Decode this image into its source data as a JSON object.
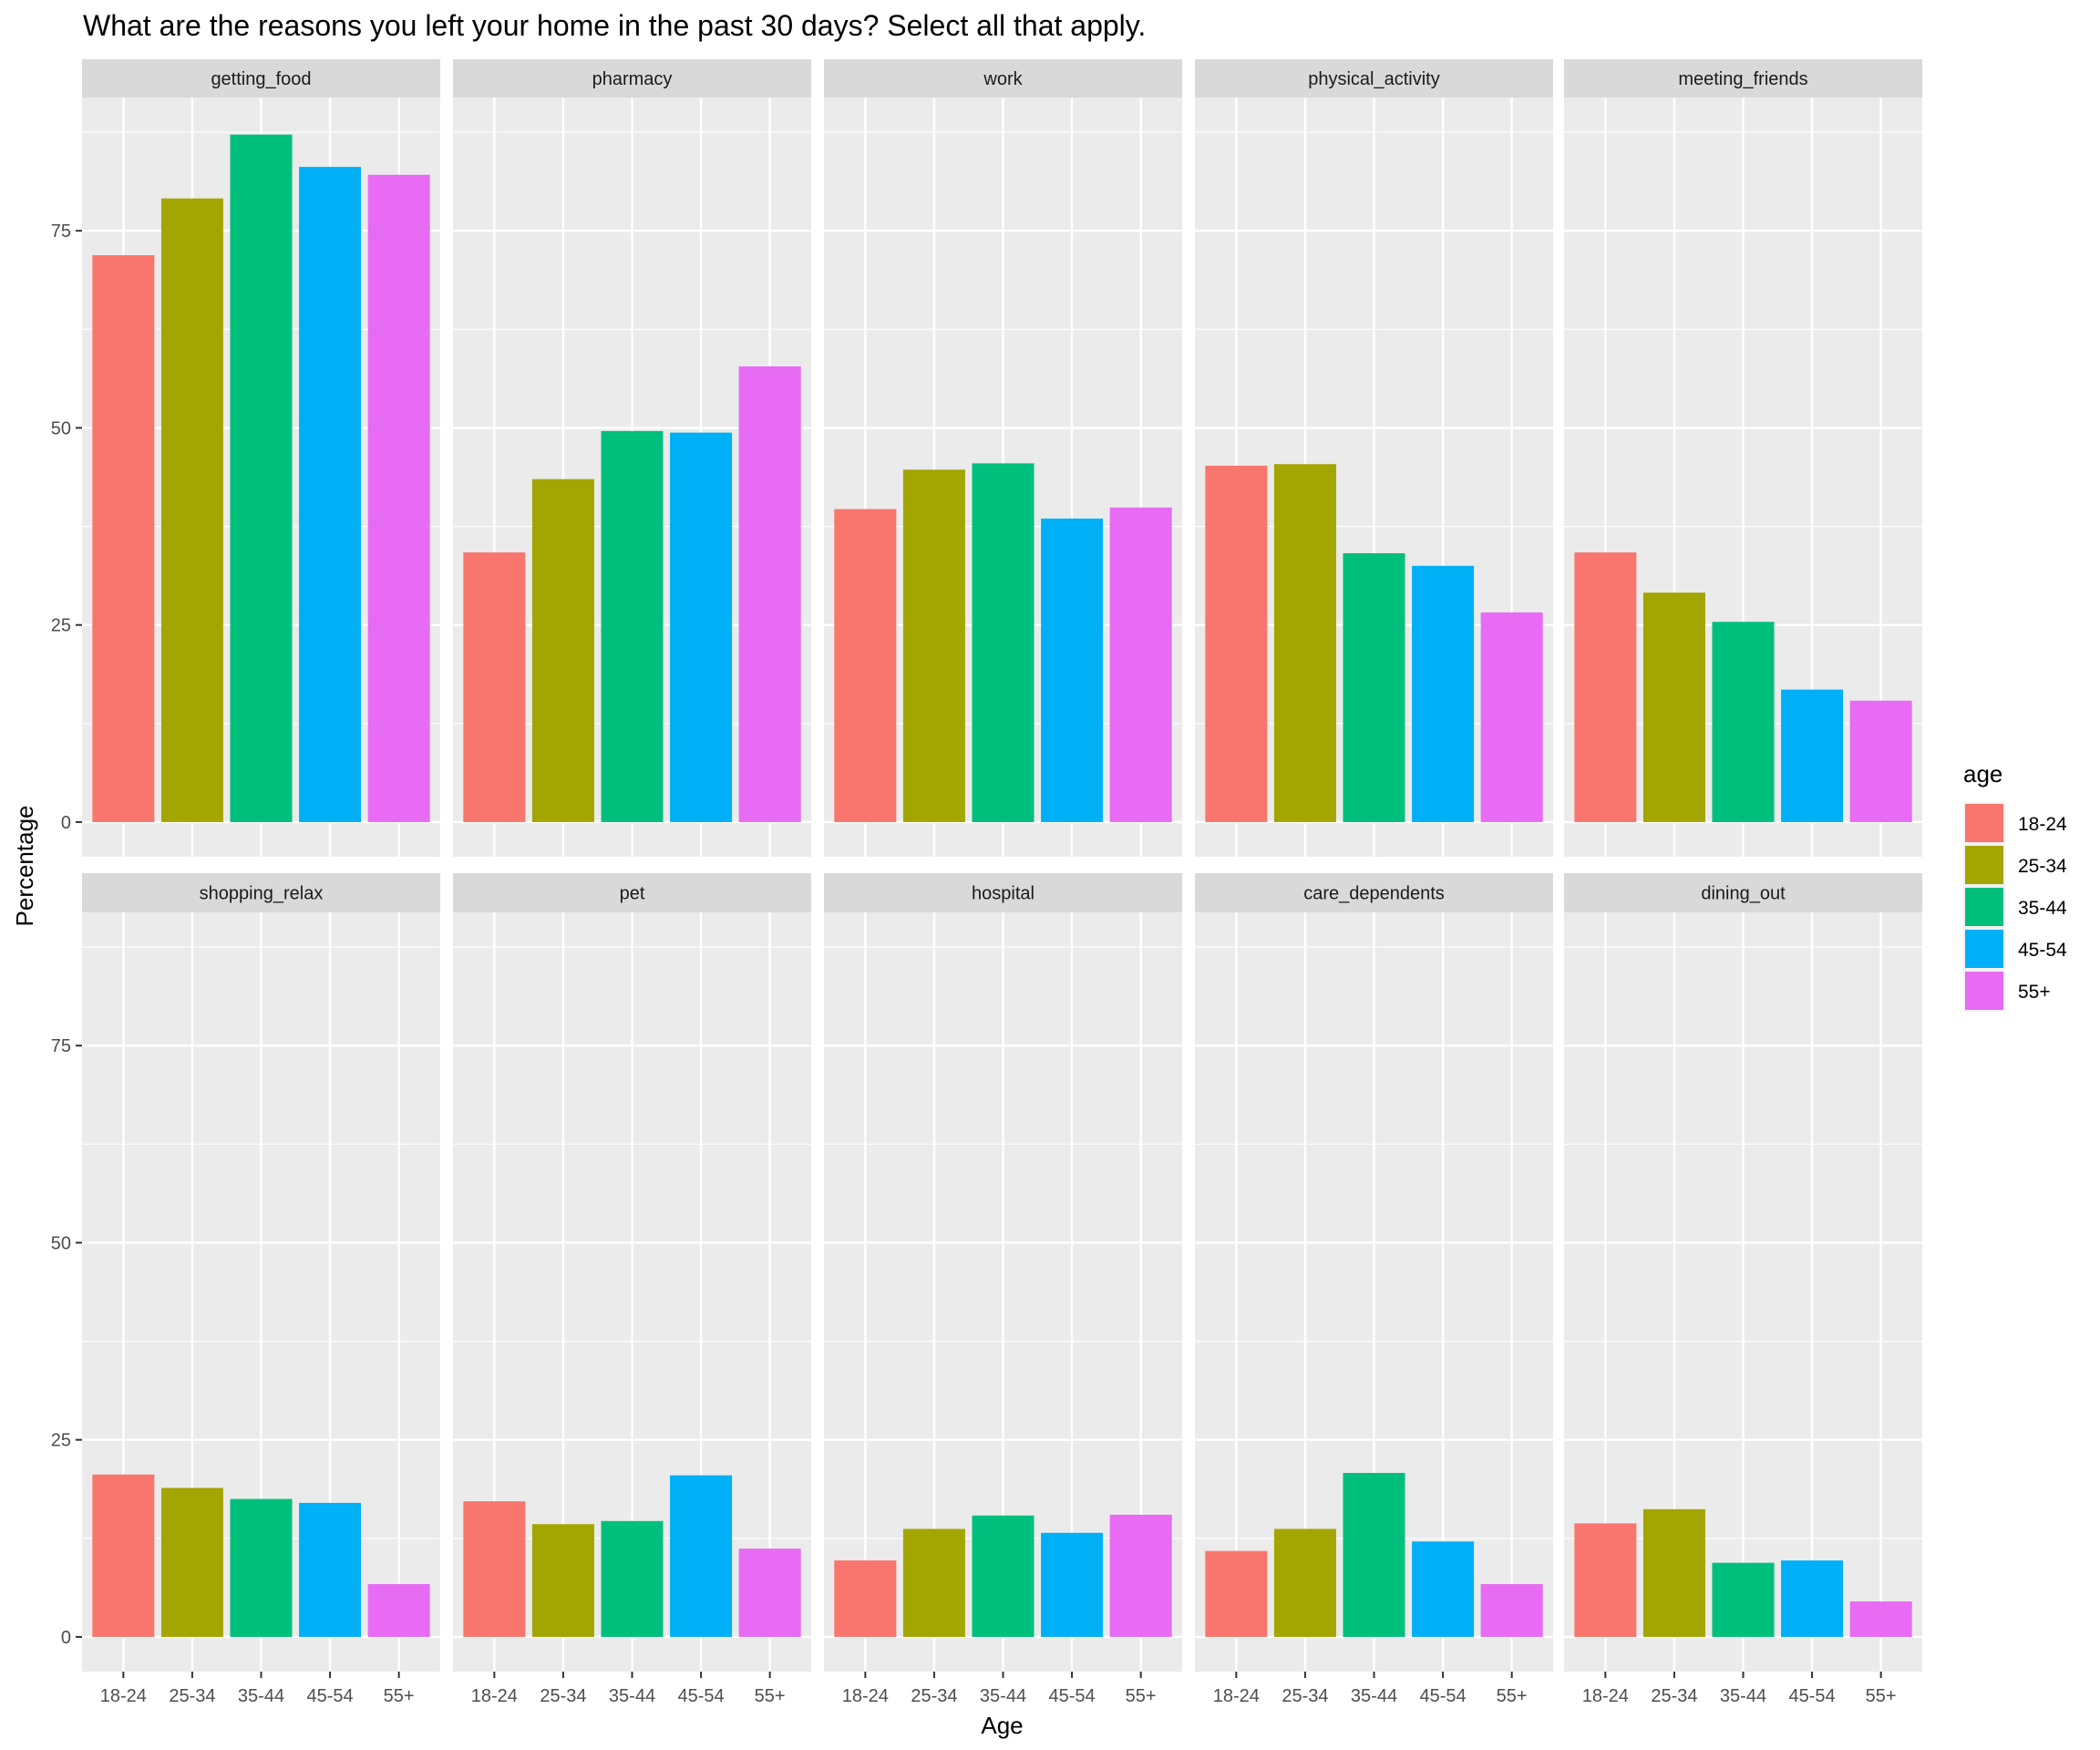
{
  "chart_data": {
    "type": "bar",
    "title": "What are the reasons you left your home in the past 30 days? Select all that apply.",
    "xlabel": "Age",
    "ylabel": "Percentage",
    "ylim": [
      -4.4,
      91.9
    ],
    "yticks": [
      0,
      25,
      50,
      75
    ],
    "grid": true,
    "legend": {
      "title": "age",
      "position": "right"
    },
    "categories": [
      "18-24",
      "25-34",
      "35-44",
      "45-54",
      "55+"
    ],
    "colors": {
      "18-24": "#F8766D",
      "25-34": "#A3A500",
      "35-44": "#00BF7D",
      "45-54": "#00B0F6",
      "55+": "#E76BF3"
    },
    "facets": [
      {
        "name": "getting_food",
        "values": [
          71.9,
          79.1,
          87.2,
          83.1,
          82.1
        ]
      },
      {
        "name": "pharmacy",
        "values": [
          34.2,
          43.5,
          49.6,
          49.4,
          57.8
        ]
      },
      {
        "name": "work",
        "values": [
          39.7,
          44.7,
          45.5,
          38.5,
          39.9
        ]
      },
      {
        "name": "physical_activity",
        "values": [
          45.2,
          45.4,
          34.1,
          32.5,
          26.6
        ]
      },
      {
        "name": "meeting_friends",
        "values": [
          34.2,
          29.1,
          25.4,
          16.8,
          15.4
        ]
      },
      {
        "name": "shopping_relax",
        "values": [
          20.6,
          18.9,
          17.5,
          17.0,
          6.7
        ]
      },
      {
        "name": "pet",
        "values": [
          17.2,
          14.3,
          14.7,
          20.5,
          11.2
        ]
      },
      {
        "name": "hospital",
        "values": [
          9.7,
          13.7,
          15.4,
          13.2,
          15.5
        ]
      },
      {
        "name": "care_dependents",
        "values": [
          10.9,
          13.7,
          20.8,
          12.1,
          6.7
        ]
      },
      {
        "name": "dining_out",
        "values": [
          14.4,
          16.2,
          9.4,
          9.7,
          4.5
        ]
      }
    ]
  }
}
